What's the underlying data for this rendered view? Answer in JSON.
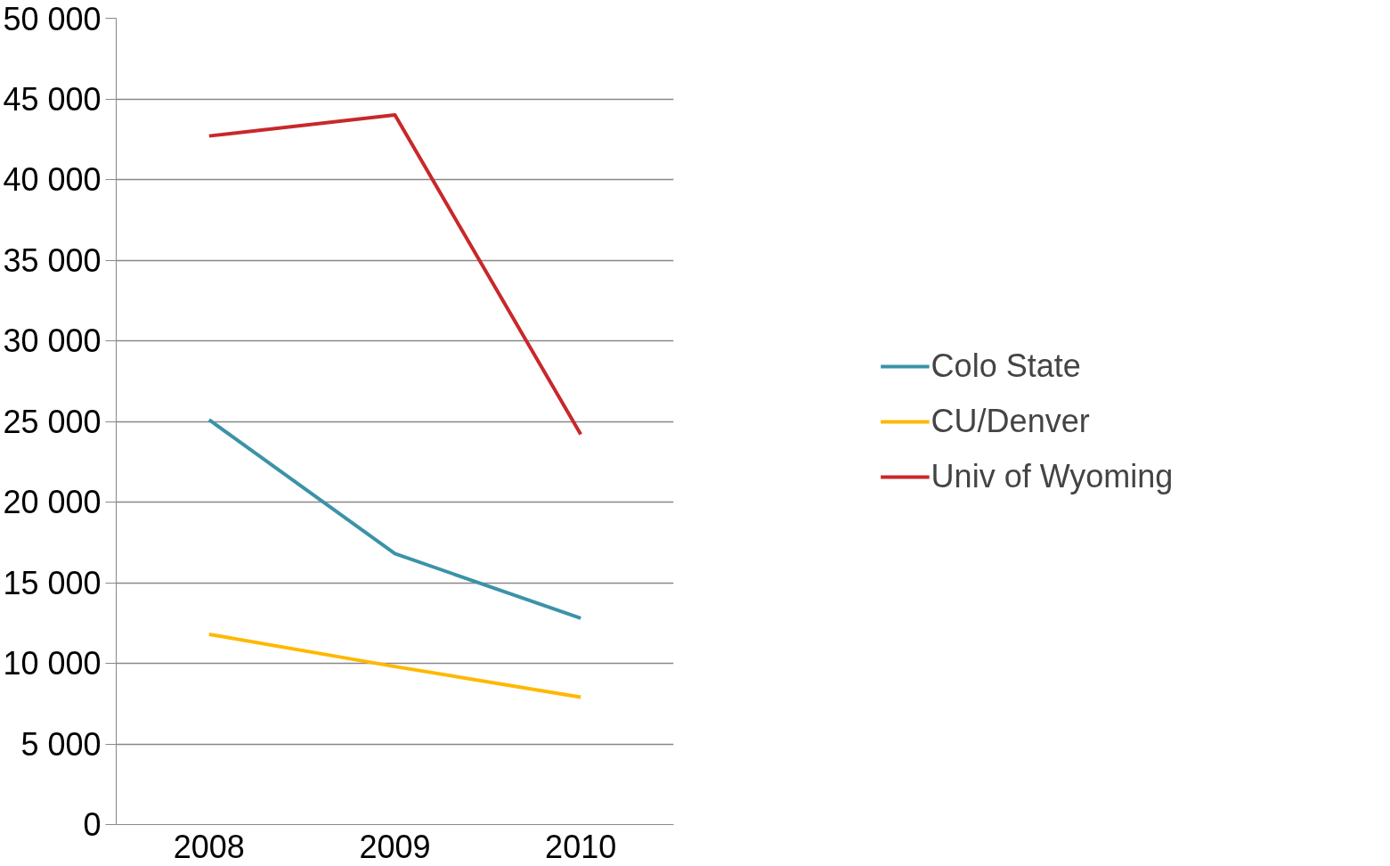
{
  "chart_data": {
    "type": "line",
    "categories": [
      "2008",
      "2009",
      "2010"
    ],
    "series": [
      {
        "name": "Colo State",
        "color": "#3b93a8",
        "values": [
          25100,
          16800,
          12800
        ]
      },
      {
        "name": "CU/Denver",
        "color": "#ffb800",
        "values": [
          11800,
          9800,
          7900
        ]
      },
      {
        "name": "Univ of Wyoming",
        "color": "#c8282a",
        "values": [
          42700,
          44000,
          24200
        ]
      }
    ],
    "ylim": [
      0,
      50000
    ],
    "yticks": [
      {
        "value": 0,
        "label": "0"
      },
      {
        "value": 5000,
        "label": "5 000"
      },
      {
        "value": 10000,
        "label": "10 000"
      },
      {
        "value": 15000,
        "label": "15 000"
      },
      {
        "value": 20000,
        "label": "20 000"
      },
      {
        "value": 25000,
        "label": "25 000"
      },
      {
        "value": 30000,
        "label": "30 000"
      },
      {
        "value": 35000,
        "label": "35 000"
      },
      {
        "value": 40000,
        "label": "40 000"
      },
      {
        "value": 45000,
        "label": "45 000"
      },
      {
        "value": 50000,
        "label": "50 000"
      }
    ],
    "grid": "y",
    "legend": "right",
    "marker": "none",
    "line_style": "solid"
  }
}
